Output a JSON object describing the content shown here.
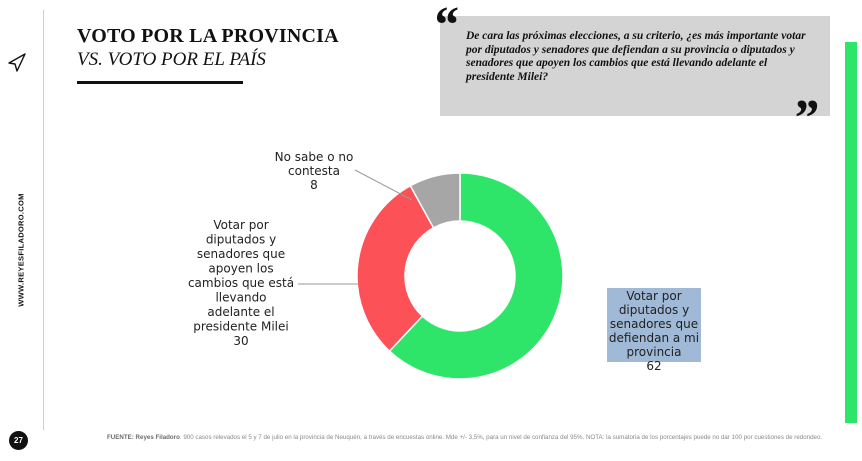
{
  "header": {
    "title": "VOTO POR LA PROVINCIA",
    "subtitle": "VS. VOTO POR EL PAÍS"
  },
  "question": {
    "open_mark": "“",
    "close_mark": "”",
    "text": "De cara las próximas elecciones, a su criterio, ¿es más importante votar por diputados y senadores que defiendan a su provincia o diputados y senadores que apoyen los cambios que está llevando adelante el presidente Milei?"
  },
  "side": {
    "site": "WWW.REYESFILADORO.COM",
    "page_number": "27"
  },
  "colors": {
    "green": "#2ee56a",
    "red": "#fd5158",
    "gray": "#a6a6a6",
    "highlight": "#9fb9d6"
  },
  "chart_data": {
    "type": "pie",
    "donut": true,
    "start": "12 o'clock, clockwise",
    "slices": [
      {
        "label": "Votar por diputados y senadores que defiendan a mi provincia",
        "label_lines": [
          "Votar por",
          "diputados y",
          "senadores que",
          "defiendan a mi",
          "provincia"
        ],
        "value": 62,
        "color": "#2ee56a"
      },
      {
        "label": "Votar por diputados y senadores que apoyen los cambios que está llevando adelante el presidente Milei",
        "label_lines": [
          "Votar por",
          "diputados y",
          "senadores que",
          "apoyen los",
          "cambios que está",
          "llevando",
          "adelante el",
          "presidente Milei"
        ],
        "value": 30,
        "color": "#fd5158"
      },
      {
        "label": "No sabe o no contesta",
        "label_lines": [
          "No sabe o no",
          "contesta"
        ],
        "value": 8,
        "color": "#a6a6a6"
      }
    ]
  },
  "footer": {
    "source_label": "FUENTE: Reyes Filadoro",
    "source_text": ". 900 casos relevados el 5 y 7 de julio en la provincia de Neuquén, a través de encuestas online. Mde +/- 3,5%, para un nivel de confianza del 95%. NOTA: la sumatoria de los porcentajes puede no dar 100 por cuestiones de redondeo."
  }
}
